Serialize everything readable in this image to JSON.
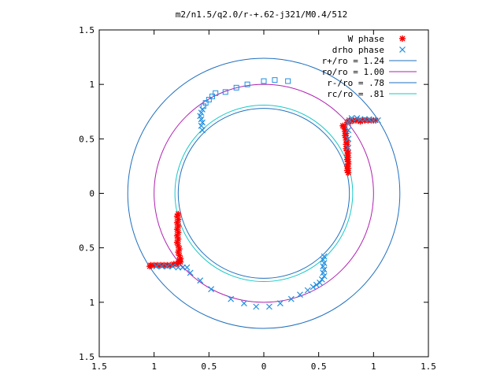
{
  "chart_data": {
    "type": "scatter",
    "title": "m2/n1.5/q2.0/r-+.62-j321/M0.4/512",
    "xlabel": "",
    "ylabel": "",
    "xlim": [
      -1.5,
      1.5
    ],
    "ylim": [
      -1.5,
      1.5
    ],
    "grid": false,
    "legend_position": "top-right",
    "x_ticks": [
      {
        "value": -1.5,
        "label": "1.5"
      },
      {
        "value": -1.0,
        "label": "1"
      },
      {
        "value": -0.5,
        "label": "0.5"
      },
      {
        "value": 0.0,
        "label": "0"
      },
      {
        "value": 0.5,
        "label": "0.5"
      },
      {
        "value": 1.0,
        "label": "1"
      },
      {
        "value": 1.5,
        "label": "1.5"
      }
    ],
    "y_ticks": [
      {
        "value": 1.5,
        "label": "1.5"
      },
      {
        "value": 1.0,
        "label": "1"
      },
      {
        "value": 0.5,
        "label": "0.5"
      },
      {
        "value": 0.0,
        "label": "0"
      },
      {
        "value": -0.5,
        "label": "0.5"
      },
      {
        "value": -1.0,
        "label": "1"
      },
      {
        "value": -1.5,
        "label": "1.5"
      }
    ],
    "circles": [
      {
        "name": "r+/ro = 1.24",
        "radius": 1.24,
        "color": "#1f6fbf"
      },
      {
        "name": "ro/ro = 1.00",
        "radius": 1.0,
        "color": "#b021b0"
      },
      {
        "name": "r-/ro = .78",
        "radius": 0.78,
        "color": "#1f6fbf"
      },
      {
        "name": "rc/ro = .81",
        "radius": 0.81,
        "color": "#18c8c8"
      }
    ],
    "series": [
      {
        "name": "W phase",
        "marker": "plus-star",
        "color": "#ff0000",
        "points": [
          [
            0.72,
            0.62
          ],
          [
            0.73,
            0.61
          ],
          [
            0.74,
            0.59
          ],
          [
            0.74,
            0.57
          ],
          [
            0.75,
            0.55
          ],
          [
            0.74,
            0.53
          ],
          [
            0.75,
            0.51
          ],
          [
            0.75,
            0.49
          ],
          [
            0.76,
            0.47
          ],
          [
            0.75,
            0.45
          ],
          [
            0.76,
            0.43
          ],
          [
            0.75,
            0.41
          ],
          [
            0.76,
            0.39
          ],
          [
            0.77,
            0.37
          ],
          [
            0.76,
            0.35
          ],
          [
            0.77,
            0.33
          ],
          [
            0.76,
            0.31
          ],
          [
            0.77,
            0.29
          ],
          [
            0.77,
            0.27
          ],
          [
            0.76,
            0.25
          ],
          [
            0.77,
            0.23
          ],
          [
            0.76,
            0.21
          ],
          [
            0.77,
            0.19
          ],
          [
            0.76,
            0.65
          ],
          [
            0.77,
            0.66
          ],
          [
            0.78,
            0.67
          ],
          [
            0.79,
            0.66
          ],
          [
            0.8,
            0.67
          ],
          [
            0.82,
            0.67
          ],
          [
            0.84,
            0.67
          ],
          [
            0.86,
            0.67
          ],
          [
            0.88,
            0.66
          ],
          [
            0.9,
            0.67
          ],
          [
            0.92,
            0.67
          ],
          [
            0.95,
            0.67
          ],
          [
            0.98,
            0.67
          ],
          [
            1.0,
            0.67
          ],
          [
            1.02,
            0.67
          ],
          [
            -0.78,
            -0.19
          ],
          [
            -0.79,
            -0.21
          ],
          [
            -0.78,
            -0.24
          ],
          [
            -0.79,
            -0.27
          ],
          [
            -0.78,
            -0.3
          ],
          [
            -0.79,
            -0.33
          ],
          [
            -0.78,
            -0.36
          ],
          [
            -0.79,
            -0.39
          ],
          [
            -0.78,
            -0.42
          ],
          [
            -0.79,
            -0.45
          ],
          [
            -0.78,
            -0.48
          ],
          [
            -0.77,
            -0.51
          ],
          [
            -0.78,
            -0.54
          ],
          [
            -0.77,
            -0.57
          ],
          [
            -0.76,
            -0.6
          ],
          [
            -0.77,
            -0.62
          ],
          [
            -0.76,
            -0.63
          ],
          [
            -0.78,
            -0.64
          ],
          [
            -0.8,
            -0.65
          ],
          [
            -0.82,
            -0.65
          ],
          [
            -0.85,
            -0.66
          ],
          [
            -0.88,
            -0.66
          ],
          [
            -0.91,
            -0.66
          ],
          [
            -0.94,
            -0.66
          ],
          [
            -0.97,
            -0.66
          ],
          [
            -1.0,
            -0.66
          ],
          [
            -1.03,
            -0.66
          ],
          [
            -1.04,
            -0.67
          ]
        ]
      },
      {
        "name": "drho phase",
        "marker": "cross",
        "color": "#1f8fe0",
        "points": [
          [
            0.55,
            -0.58
          ],
          [
            0.54,
            -0.61
          ],
          [
            0.55,
            -0.64
          ],
          [
            0.54,
            -0.67
          ],
          [
            0.55,
            -0.7
          ],
          [
            0.54,
            -0.73
          ],
          [
            0.55,
            -0.76
          ],
          [
            0.53,
            -0.79
          ],
          [
            0.51,
            -0.82
          ],
          [
            0.48,
            -0.84
          ],
          [
            0.45,
            -0.86
          ],
          [
            0.4,
            -0.89
          ],
          [
            0.33,
            -0.93
          ],
          [
            0.25,
            -0.97
          ],
          [
            0.15,
            -1.01
          ],
          [
            0.05,
            -1.04
          ],
          [
            -0.07,
            -1.04
          ],
          [
            -0.18,
            -1.01
          ],
          [
            -0.3,
            -0.97
          ],
          [
            -0.48,
            -0.88
          ],
          [
            -0.58,
            -0.8
          ],
          [
            -0.67,
            -0.73
          ],
          [
            -0.7,
            -0.68
          ],
          [
            -0.74,
            -0.68
          ],
          [
            -0.78,
            -0.68
          ],
          [
            -0.83,
            -0.67
          ],
          [
            -0.88,
            -0.67
          ],
          [
            -0.93,
            -0.67
          ],
          [
            -0.98,
            -0.67
          ],
          [
            1.04,
            0.67
          ],
          [
            1.0,
            0.67
          ],
          [
            0.96,
            0.68
          ],
          [
            0.92,
            0.68
          ],
          [
            0.88,
            0.68
          ],
          [
            0.85,
            0.69
          ],
          [
            0.8,
            0.69
          ],
          [
            0.78,
            0.67
          ],
          [
            0.77,
            0.64
          ],
          [
            0.77,
            0.58
          ],
          [
            0.77,
            0.5
          ],
          [
            0.77,
            0.42
          ],
          [
            -0.56,
            0.58
          ],
          [
            -0.57,
            0.62
          ],
          [
            -0.56,
            0.65
          ],
          [
            -0.57,
            0.68
          ],
          [
            -0.58,
            0.71
          ],
          [
            -0.57,
            0.74
          ],
          [
            -0.56,
            0.77
          ]
        ]
      },
      {
        "name": "",
        "marker": "open-square",
        "color": "#1f8fe0",
        "points": [
          [
            -0.55,
            0.8
          ],
          [
            -0.53,
            0.83
          ],
          [
            -0.5,
            0.86
          ],
          [
            -0.47,
            0.89
          ],
          [
            -0.44,
            0.92
          ],
          [
            -0.35,
            0.93
          ],
          [
            -0.25,
            0.97
          ],
          [
            -0.15,
            1.0
          ],
          [
            0.0,
            1.03
          ],
          [
            0.1,
            1.04
          ],
          [
            0.22,
            1.03
          ]
        ]
      }
    ]
  }
}
